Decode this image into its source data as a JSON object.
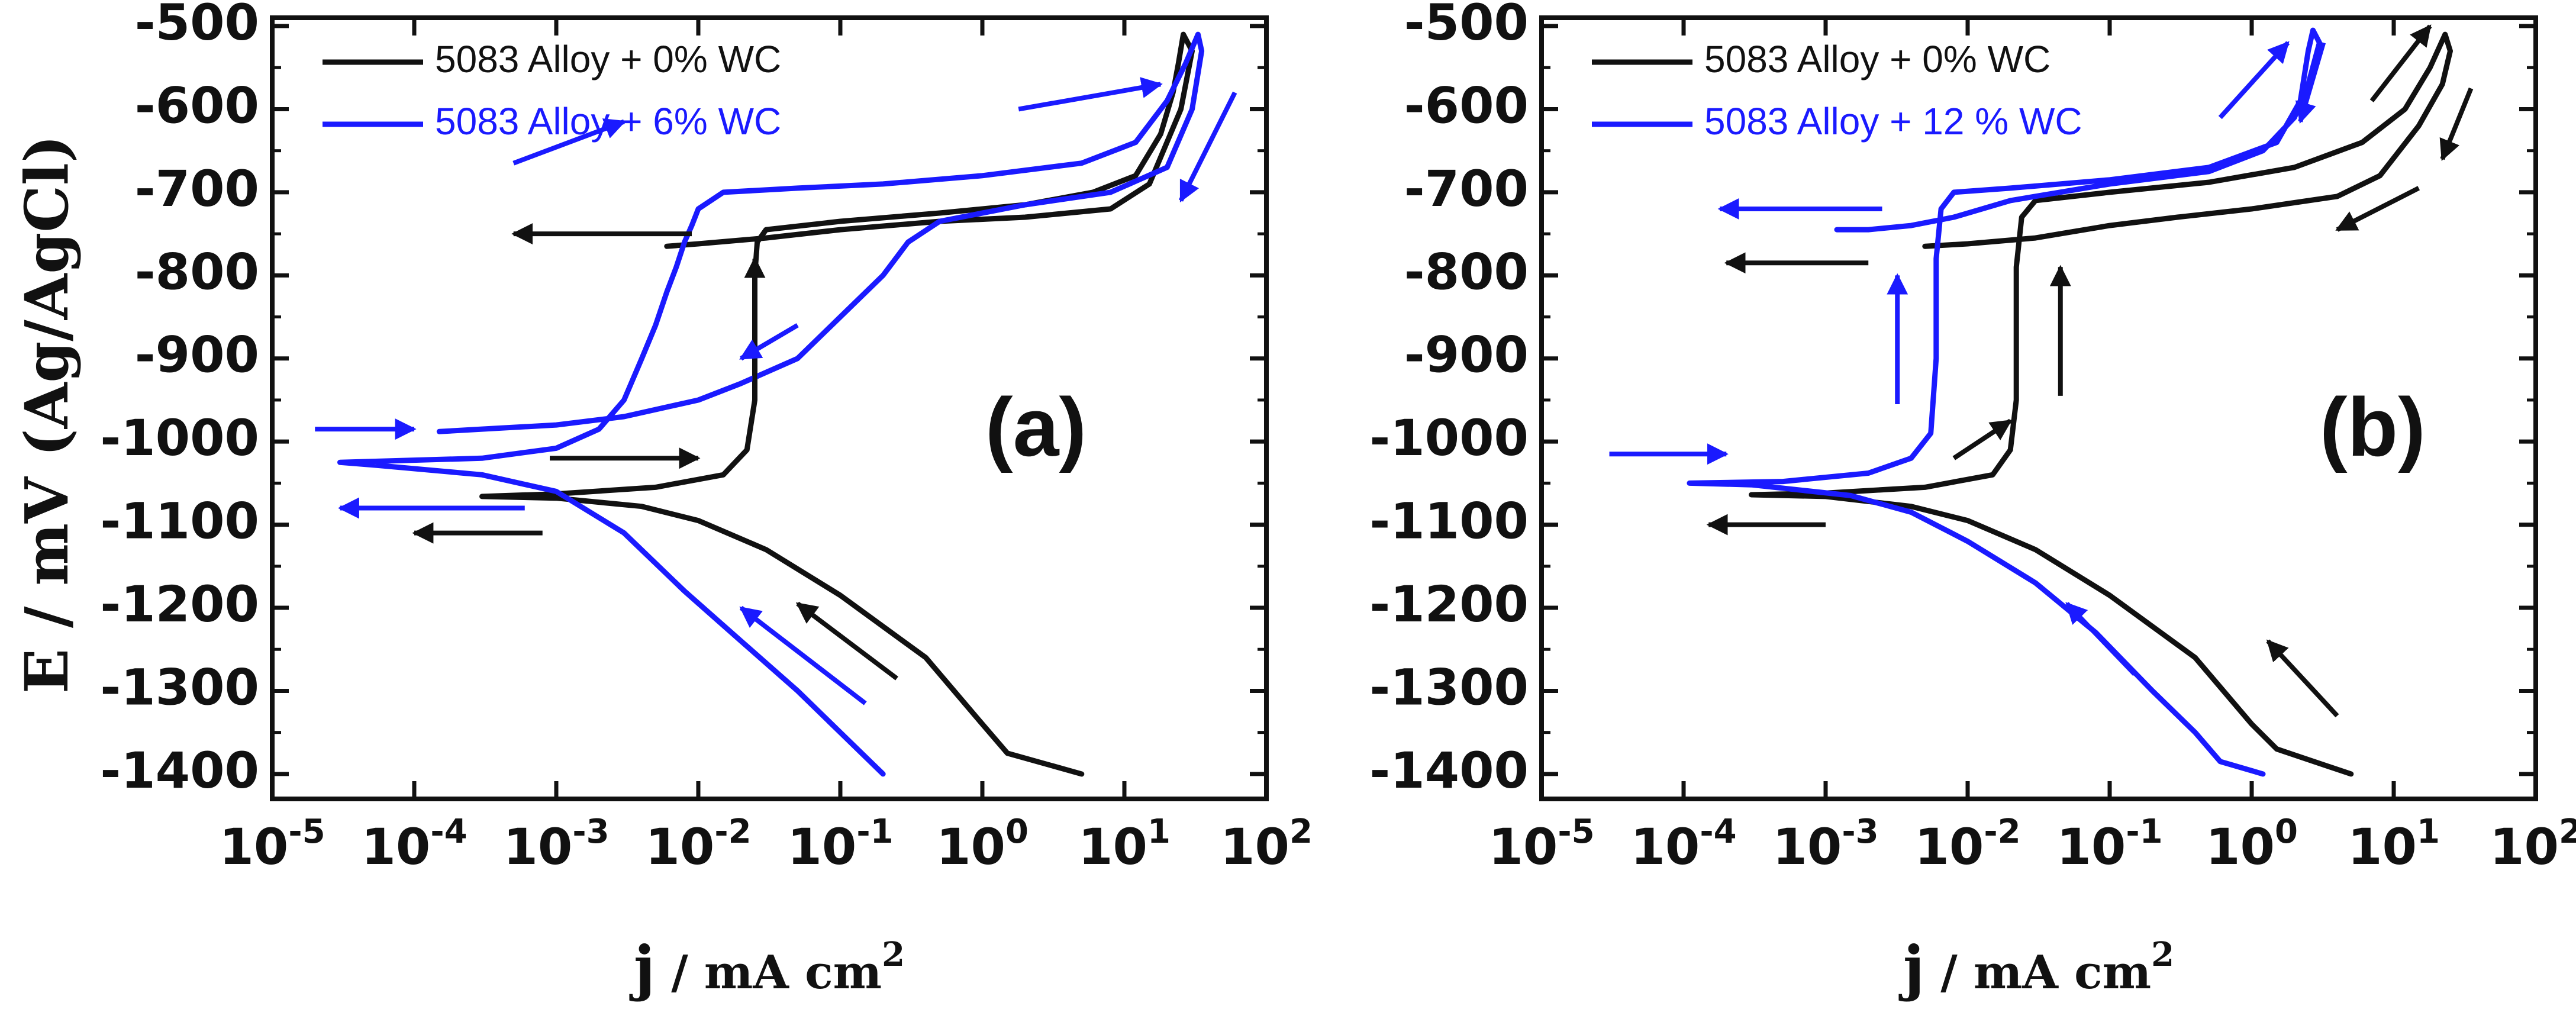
{
  "chart_data": [
    {
      "type": "line",
      "panel_label": "(a)",
      "xlabel_main": "j",
      "xlabel_unit": " / mA cm",
      "xlabel_sup": "2",
      "ylabel": "E / mV (Ag/AgCl)",
      "xscale": "log",
      "xlim": [
        1e-05,
        100
      ],
      "ylim": [
        -1430,
        -490
      ],
      "x_tick_labels": [
        {
          "base": "10",
          "exp": "-5"
        },
        {
          "base": "10",
          "exp": "-4"
        },
        {
          "base": "10",
          "exp": "-3"
        },
        {
          "base": "10",
          "exp": "-2"
        },
        {
          "base": "10",
          "exp": "-1"
        },
        {
          "base": "10",
          "exp": "0"
        },
        {
          "base": "10",
          "exp": "1"
        },
        {
          "base": "10",
          "exp": "2"
        }
      ],
      "y_ticks": [
        -500,
        -600,
        -700,
        -800,
        -900,
        -1000,
        -1100,
        -1200,
        -1300,
        -1400
      ],
      "y_tick_labels": [
        "-500",
        "-600",
        "-700",
        "-800",
        "-900",
        "-1000",
        "-1100",
        "-1200",
        "-1300",
        "-1400"
      ],
      "legend": "top-left",
      "series": [
        {
          "name": "5083 Alloy + 0%  WC",
          "color": "#111111",
          "points": [
            [
              5,
              -1400
            ],
            [
              1.5,
              -1375
            ],
            [
              1,
              -1340
            ],
            [
              0.4,
              -1260
            ],
            [
              0.1,
              -1185
            ],
            [
              0.03,
              -1130
            ],
            [
              0.01,
              -1095
            ],
            [
              0.004,
              -1078
            ],
            [
              0.001,
              -1068
            ],
            [
              0.0003,
              -1066
            ],
            [
              0.001,
              -1063
            ],
            [
              0.005,
              -1055
            ],
            [
              0.015,
              -1040
            ],
            [
              0.022,
              -1010
            ],
            [
              0.025,
              -950
            ],
            [
              0.025,
              -800
            ],
            [
              0.026,
              -760
            ],
            [
              0.03,
              -745
            ],
            [
              0.1,
              -735
            ],
            [
              0.5,
              -725
            ],
            [
              2,
              -715
            ],
            [
              6,
              -700
            ],
            [
              12,
              -680
            ],
            [
              18,
              -630
            ],
            [
              22,
              -580
            ],
            [
              24,
              -545
            ],
            [
              26,
              -510
            ],
            [
              30,
              -530
            ],
            [
              25,
              -600
            ],
            [
              15,
              -690
            ],
            [
              8,
              -720
            ],
            [
              2,
              -730
            ],
            [
              0.5,
              -735
            ],
            [
              0.1,
              -745
            ],
            [
              0.03,
              -755
            ],
            [
              0.01,
              -762
            ],
            [
              0.006,
              -765
            ]
          ]
        },
        {
          "name": "5083 Alloy + 6%  WC",
          "color": "#1a1aff",
          "points": [
            [
              0.2,
              -1400
            ],
            [
              0.1,
              -1350
            ],
            [
              0.05,
              -1300
            ],
            [
              0.02,
              -1240
            ],
            [
              0.008,
              -1180
            ],
            [
              0.003,
              -1110
            ],
            [
              0.001,
              -1060
            ],
            [
              0.0003,
              -1040
            ],
            [
              5e-05,
              -1028
            ],
            [
              3e-05,
              -1025
            ],
            [
              0.0003,
              -1020
            ],
            [
              0.001,
              -1008
            ],
            [
              0.002,
              -985
            ],
            [
              0.003,
              -950
            ],
            [
              0.004,
              -900
            ],
            [
              0.005,
              -860
            ],
            [
              0.006,
              -820
            ],
            [
              0.007,
              -790
            ],
            [
              0.008,
              -760
            ],
            [
              0.009,
              -740
            ],
            [
              0.01,
              -720
            ],
            [
              0.015,
              -700
            ],
            [
              0.05,
              -695
            ],
            [
              0.2,
              -690
            ],
            [
              1,
              -680
            ],
            [
              5,
              -665
            ],
            [
              12,
              -640
            ],
            [
              20,
              -590
            ],
            [
              27,
              -545
            ],
            [
              33,
              -510
            ],
            [
              35,
              -530
            ],
            [
              30,
              -600
            ],
            [
              20,
              -670
            ],
            [
              8,
              -700
            ],
            [
              2,
              -715
            ],
            [
              0.5,
              -735
            ],
            [
              0.3,
              -760
            ],
            [
              0.2,
              -800
            ],
            [
              0.1,
              -850
            ],
            [
              0.05,
              -900
            ],
            [
              0.02,
              -930
            ],
            [
              0.01,
              -950
            ],
            [
              0.003,
              -970
            ],
            [
              0.001,
              -980
            ],
            [
              0.0003,
              -985
            ],
            [
              0.00015,
              -988
            ]
          ]
        }
      ],
      "arrows": [
        {
          "color": "#111111",
          "from": [
            0.009,
            -750
          ],
          "to": [
            0.0005,
            -750
          ]
        },
        {
          "color": "#111111",
          "from": [
            0.025,
            -935
          ],
          "to": [
            0.025,
            -780
          ]
        },
        {
          "color": "#111111",
          "from": [
            0.0009,
            -1020
          ],
          "to": [
            0.01,
            -1020
          ]
        },
        {
          "color": "#111111",
          "from": [
            0.0008,
            -1110
          ],
          "to": [
            0.0001,
            -1110
          ]
        },
        {
          "color": "#111111",
          "from": [
            0.25,
            -1285
          ],
          "to": [
            0.05,
            -1195
          ]
        },
        {
          "color": "#1a1aff",
          "from": [
            0.0006,
            -1080
          ],
          "to": [
            3e-05,
            -1080
          ]
        },
        {
          "color": "#1a1aff",
          "from": [
            2e-05,
            -985
          ],
          "to": [
            0.0001,
            -985
          ]
        },
        {
          "color": "#1a1aff",
          "from": [
            0.0005,
            -665
          ],
          "to": [
            0.003,
            -615
          ]
        },
        {
          "color": "#1a1aff",
          "from": [
            1.8,
            -600
          ],
          "to": [
            18,
            -570
          ]
        },
        {
          "color": "#1a1aff",
          "from": [
            0.05,
            -860
          ],
          "to": [
            0.02,
            -900
          ]
        },
        {
          "color": "#1a1aff",
          "from": [
            0.15,
            -1315
          ],
          "to": [
            0.02,
            -1200
          ]
        },
        {
          "color": "#1a1aff",
          "from": [
            60,
            -580
          ],
          "to": [
            25,
            -710
          ]
        }
      ]
    },
    {
      "type": "line",
      "panel_label": "(b)",
      "xlabel_main": "j",
      "xlabel_unit": " / mA cm",
      "xlabel_sup": "2",
      "xscale": "log",
      "xlim": [
        1e-05,
        100
      ],
      "ylim": [
        -1430,
        -490
      ],
      "x_tick_labels": [
        {
          "base": "10",
          "exp": "-5"
        },
        {
          "base": "10",
          "exp": "-4"
        },
        {
          "base": "10",
          "exp": "-3"
        },
        {
          "base": "10",
          "exp": "-2"
        },
        {
          "base": "10",
          "exp": "-1"
        },
        {
          "base": "10",
          "exp": "0"
        },
        {
          "base": "10",
          "exp": "1"
        },
        {
          "base": "10",
          "exp": "2"
        }
      ],
      "y_ticks": [
        -500,
        -600,
        -700,
        -800,
        -900,
        -1000,
        -1100,
        -1200,
        -1300,
        -1400
      ],
      "y_tick_labels": [
        "-500",
        "-600",
        "-700",
        "-800",
        "-900",
        "-1000",
        "-1100",
        "-1200",
        "-1300",
        "-1400"
      ],
      "legend": "top-left",
      "series": [
        {
          "name": "5083 Alloy + 0%  WC",
          "color": "#111111",
          "points": [
            [
              5,
              -1400
            ],
            [
              1.5,
              -1370
            ],
            [
              1,
              -1340
            ],
            [
              0.4,
              -1260
            ],
            [
              0.1,
              -1185
            ],
            [
              0.03,
              -1130
            ],
            [
              0.01,
              -1095
            ],
            [
              0.004,
              -1078
            ],
            [
              0.001,
              -1066
            ],
            [
              0.0003,
              -1064
            ],
            [
              0.001,
              -1062
            ],
            [
              0.005,
              -1055
            ],
            [
              0.015,
              -1040
            ],
            [
              0.02,
              -1010
            ],
            [
              0.022,
              -950
            ],
            [
              0.022,
              -790
            ],
            [
              0.024,
              -730
            ],
            [
              0.03,
              -710
            ],
            [
              0.1,
              -700
            ],
            [
              0.5,
              -688
            ],
            [
              2,
              -670
            ],
            [
              6,
              -640
            ],
            [
              12,
              -600
            ],
            [
              18,
              -550
            ],
            [
              23,
              -510
            ],
            [
              25,
              -530
            ],
            [
              22,
              -570
            ],
            [
              15,
              -620
            ],
            [
              8,
              -680
            ],
            [
              4,
              -705
            ],
            [
              1,
              -720
            ],
            [
              0.3,
              -730
            ],
            [
              0.1,
              -740
            ],
            [
              0.03,
              -755
            ],
            [
              0.01,
              -762
            ],
            [
              0.005,
              -765
            ]
          ]
        },
        {
          "name": "5083 Alloy + 12 %  WC",
          "color": "#1a1aff",
          "points": [
            [
              1.2,
              -1400
            ],
            [
              0.6,
              -1385
            ],
            [
              0.4,
              -1350
            ],
            [
              0.2,
              -1300
            ],
            [
              0.08,
              -1230
            ],
            [
              0.03,
              -1170
            ],
            [
              0.01,
              -1120
            ],
            [
              0.004,
              -1085
            ],
            [
              0.0015,
              -1065
            ],
            [
              0.0003,
              -1052
            ],
            [
              0.00011,
              -1050
            ],
            [
              0.0005,
              -1048
            ],
            [
              0.002,
              -1038
            ],
            [
              0.004,
              -1020
            ],
            [
              0.0055,
              -990
            ],
            [
              0.006,
              -900
            ],
            [
              0.006,
              -780
            ],
            [
              0.0065,
              -720
            ],
            [
              0.008,
              -700
            ],
            [
              0.02,
              -695
            ],
            [
              0.1,
              -685
            ],
            [
              0.5,
              -670
            ],
            [
              1.5,
              -640
            ],
            [
              2.2,
              -590
            ],
            [
              2.5,
              -530
            ],
            [
              2.7,
              -505
            ],
            [
              3,
              -520
            ],
            [
              2.5,
              -570
            ],
            [
              2,
              -610
            ],
            [
              1.2,
              -650
            ],
            [
              0.5,
              -675
            ],
            [
              0.1,
              -690
            ],
            [
              0.02,
              -710
            ],
            [
              0.008,
              -730
            ],
            [
              0.004,
              -740
            ],
            [
              0.002,
              -745
            ],
            [
              0.0012,
              -745
            ]
          ]
        }
      ],
      "arrows": [
        {
          "color": "#1a1aff",
          "from": [
            0.0025,
            -720
          ],
          "to": [
            0.00018,
            -720
          ]
        },
        {
          "color": "#1a1aff",
          "from": [
            0.0032,
            -955
          ],
          "to": [
            0.0032,
            -800
          ]
        },
        {
          "color": "#1a1aff",
          "from": [
            3e-05,
            -1015
          ],
          "to": [
            0.0002,
            -1015
          ]
        },
        {
          "color": "#1a1aff",
          "from": [
            0.15,
            -1280
          ],
          "to": [
            0.05,
            -1195
          ]
        },
        {
          "color": "#1a1aff",
          "from": [
            0.6,
            -610
          ],
          "to": [
            1.8,
            -520
          ]
        },
        {
          "color": "#1a1aff",
          "from": [
            3.2,
            -520
          ],
          "to": [
            2.2,
            -615
          ]
        },
        {
          "color": "#111111",
          "from": [
            0.002,
            -785
          ],
          "to": [
            0.0002,
            -785
          ]
        },
        {
          "color": "#111111",
          "from": [
            0.045,
            -945
          ],
          "to": [
            0.045,
            -790
          ]
        },
        {
          "color": "#111111",
          "from": [
            0.008,
            -1020
          ],
          "to": [
            0.02,
            -975
          ]
        },
        {
          "color": "#111111",
          "from": [
            0.001,
            -1100
          ],
          "to": [
            0.00015,
            -1100
          ]
        },
        {
          "color": "#111111",
          "from": [
            4,
            -1330
          ],
          "to": [
            1.3,
            -1240
          ]
        },
        {
          "color": "#111111",
          "from": [
            7,
            -590
          ],
          "to": [
            18,
            -500
          ]
        },
        {
          "color": "#111111",
          "from": [
            35,
            -575
          ],
          "to": [
            22,
            -660
          ]
        },
        {
          "color": "#111111",
          "from": [
            15,
            -695
          ],
          "to": [
            4,
            -745
          ]
        }
      ]
    }
  ]
}
